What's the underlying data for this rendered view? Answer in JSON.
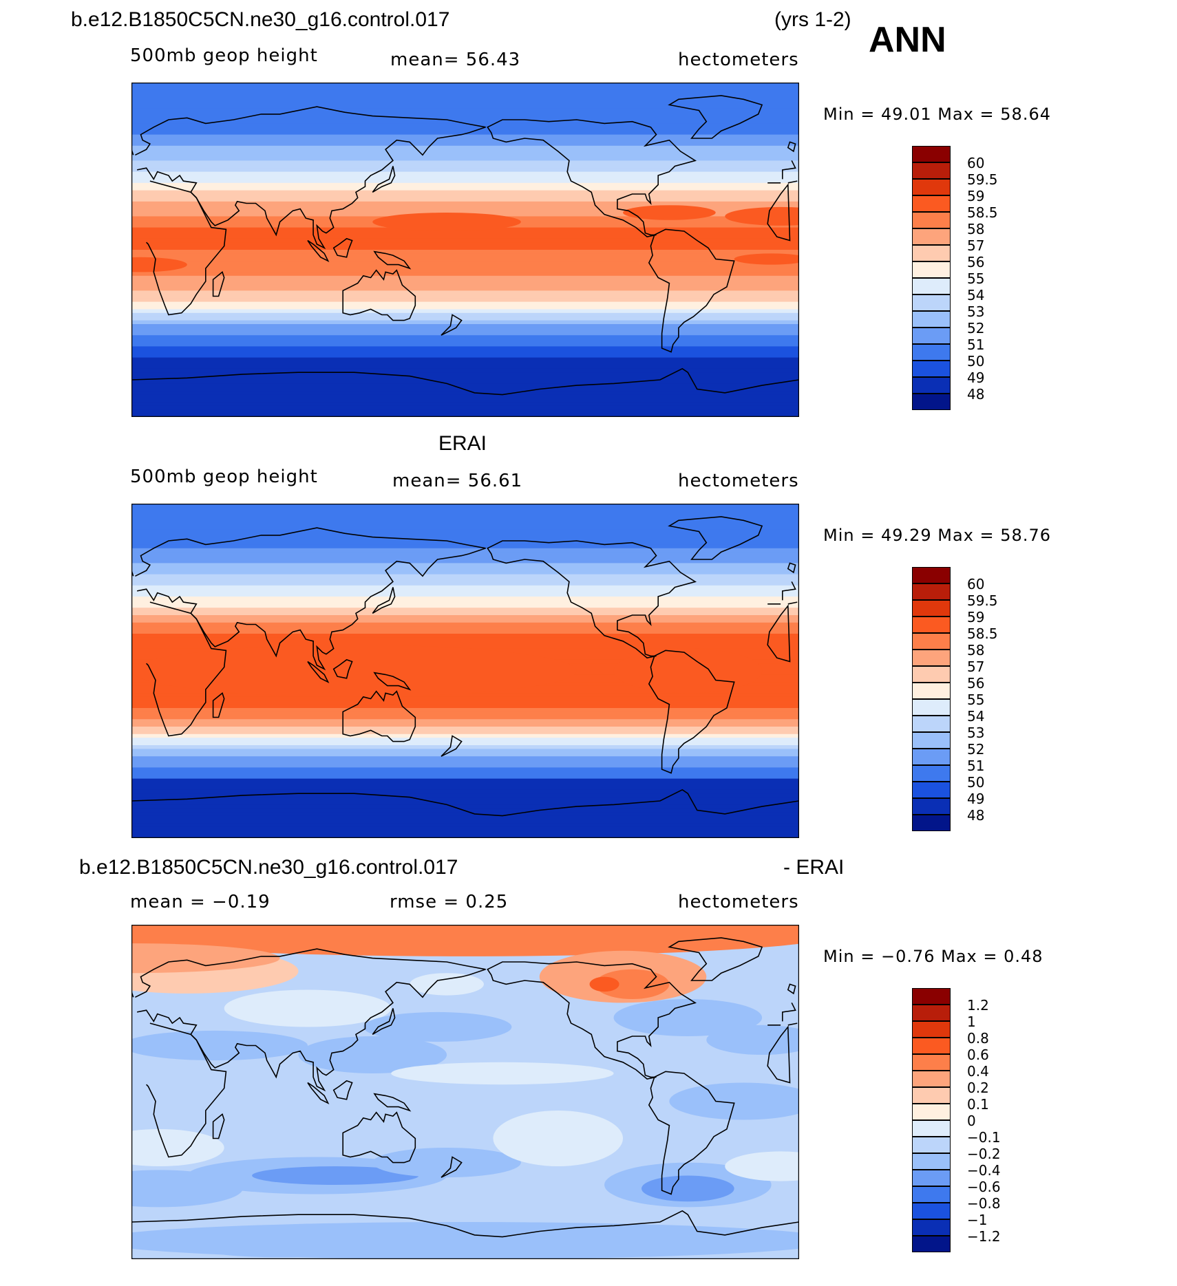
{
  "header": {
    "case_name": "b.e12.B1850C5CN.ne30_g16.control.017",
    "years": "(yrs 1-2)",
    "season": "ANN"
  },
  "panels": [
    {
      "id": "model",
      "title": "",
      "variable": "500mb geop height",
      "stat1": "mean=   56.43",
      "stat2": "",
      "units": "hectometers",
      "minmax": "Min =   49.01  Max =   58.64",
      "kind": "abs"
    },
    {
      "id": "obs",
      "title": "ERAI",
      "variable": "500mb geop height",
      "stat1": "mean=   56.61",
      "stat2": "",
      "units": "hectometers",
      "minmax": "Min =   49.29  Max =   58.76",
      "kind": "abs"
    },
    {
      "id": "diff",
      "title_left": "b.e12.B1850C5CN.ne30_g16.control.017",
      "title_right": "- ERAI",
      "variable": "",
      "stat1": "mean =   −0.19",
      "stat2": "rmse =    0.25",
      "units": "hectometers",
      "minmax": "Min =   −0.76  Max =    0.48",
      "kind": "diff"
    }
  ],
  "colorbar_abs": {
    "labels": [
      "60",
      "59.5",
      "59",
      "58.5",
      "58",
      "57",
      "56",
      "55",
      "54",
      "53",
      "52",
      "51",
      "50",
      "49",
      "48"
    ],
    "colors": [
      "#8a0000",
      "#b81e0a",
      "#e0380c",
      "#fb5a21",
      "#fd7f4a",
      "#fda47c",
      "#fecbb0",
      "#fff0e0",
      "#deecfb",
      "#bcd5fa",
      "#9ac0fa",
      "#6b9cf5",
      "#3e79ee",
      "#1b52df",
      "#0a2fb5",
      "#02158a"
    ]
  },
  "colorbar_diff": {
    "labels": [
      "1.2",
      "1",
      "0.8",
      "0.6",
      "0.4",
      "0.2",
      "0.1",
      "0",
      "−0.1",
      "−0.2",
      "−0.4",
      "−0.6",
      "−0.8",
      "−1",
      "−1.2"
    ],
    "colors": [
      "#8a0000",
      "#b81e0a",
      "#e0380c",
      "#fb5a21",
      "#fd7f4a",
      "#fda47c",
      "#fecbb0",
      "#fff0e0",
      "#deecfb",
      "#bcd5fa",
      "#9ac0fa",
      "#6b9cf5",
      "#3e79ee",
      "#1b52df",
      "#0a2fb5",
      "#02158a"
    ]
  }
}
